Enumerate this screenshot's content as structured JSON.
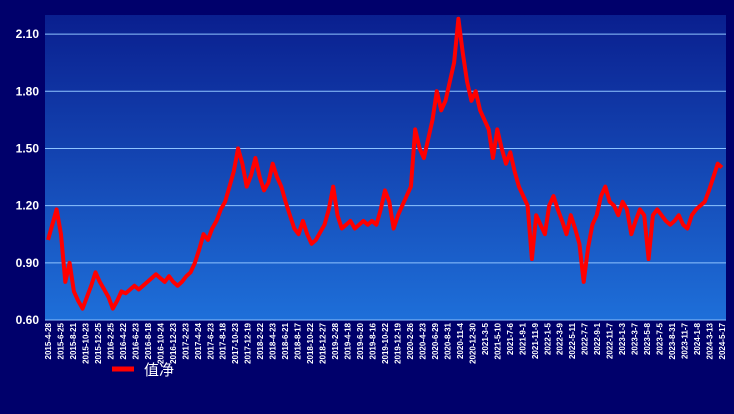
{
  "colors": {
    "page_bg": "#00006b",
    "plot_bg_top": "#0a1f8f",
    "plot_bg_bottom": "#1e6fd9",
    "grid": "#8fc4ff",
    "axis_text": "#ffffff",
    "series": "#ff0000"
  },
  "chart_data": {
    "type": "line",
    "title": "",
    "xlabel": "",
    "ylabel": "",
    "ylim": [
      0.6,
      2.2
    ],
    "yticks": [
      0.6,
      0.9,
      1.2,
      1.5,
      1.8,
      2.1
    ],
    "ytick_labels": [
      "0.60",
      "0.90",
      "1.20",
      "1.50",
      "1.80",
      "2.10"
    ],
    "grid": true,
    "legend_position": "bottom-left",
    "x_tick_labels": [
      "2015-4-28",
      "2015-6-25",
      "2015-8-21",
      "2015-10-23",
      "2015-12-25",
      "2016-2-25",
      "2016-4-22",
      "2016-6-23",
      "2016-8-18",
      "2016-10-24",
      "2016-12-23",
      "2017-2-23",
      "2017-4-24",
      "2017-6-23",
      "2017-8-18",
      "2017-10-23",
      "2017-12-19",
      "2018-2-22",
      "2018-4-23",
      "2018-6-21",
      "2018-8-17",
      "2018-10-22",
      "2018-12-27",
      "2019-2-28",
      "2019-4-18",
      "2019-6-20",
      "2019-8-16",
      "2019-10-22",
      "2019-12-19",
      "2020-2-26",
      "2020-4-23",
      "2020-6-29",
      "2020-8-31",
      "2020-11-4",
      "2020-12-30",
      "2021-3-5",
      "2021-5-10",
      "2021-7-6",
      "2021-9-1",
      "2021-11-9",
      "2022-1-5",
      "2022-3-9",
      "2022-5-11",
      "2022-7-7",
      "2022-9-1",
      "2022-11-7",
      "2023-1-3",
      "2023-3-7",
      "2023-5-8",
      "2023-7-5",
      "2023-8-31",
      "2023-11-7",
      "2024-1-8",
      "2024-3-13",
      "2024-5-17"
    ],
    "series": [
      {
        "name": "值净",
        "values": [
          1.02,
          1.1,
          1.18,
          1.05,
          0.8,
          0.9,
          0.75,
          0.7,
          0.66,
          0.72,
          0.78,
          0.85,
          0.8,
          0.76,
          0.72,
          0.66,
          0.7,
          0.75,
          0.74,
          0.76,
          0.78,
          0.76,
          0.78,
          0.8,
          0.82,
          0.84,
          0.82,
          0.8,
          0.83,
          0.8,
          0.78,
          0.8,
          0.83,
          0.85,
          0.9,
          0.97,
          1.05,
          1.02,
          1.08,
          1.12,
          1.18,
          1.22,
          1.3,
          1.38,
          1.5,
          1.42,
          1.3,
          1.36,
          1.45,
          1.35,
          1.28,
          1.32,
          1.42,
          1.35,
          1.3,
          1.22,
          1.15,
          1.08,
          1.05,
          1.12,
          1.05,
          1.0,
          1.02,
          1.06,
          1.1,
          1.18,
          1.3,
          1.15,
          1.08,
          1.1,
          1.12,
          1.08,
          1.1,
          1.12,
          1.1,
          1.12,
          1.1,
          1.18,
          1.28,
          1.22,
          1.08,
          1.15,
          1.2,
          1.25,
          1.3,
          1.6,
          1.5,
          1.45,
          1.55,
          1.65,
          1.8,
          1.7,
          1.75,
          1.85,
          1.95,
          2.18,
          2.0,
          1.85,
          1.75,
          1.8,
          1.7,
          1.65,
          1.6,
          1.45,
          1.6,
          1.5,
          1.42,
          1.48,
          1.38,
          1.3,
          1.25,
          1.2,
          0.92,
          1.15,
          1.1,
          1.05,
          1.2,
          1.25,
          1.18,
          1.12,
          1.05,
          1.15,
          1.08,
          1.0,
          0.8,
          0.98,
          1.1,
          1.15,
          1.25,
          1.3,
          1.22,
          1.2,
          1.15,
          1.22,
          1.18,
          1.05,
          1.12,
          1.18,
          1.15,
          0.92,
          1.15,
          1.18,
          1.15,
          1.12,
          1.1,
          1.12,
          1.15,
          1.1,
          1.08,
          1.15,
          1.18,
          1.2,
          1.22,
          1.28,
          1.35,
          1.42,
          1.4
        ]
      }
    ]
  }
}
